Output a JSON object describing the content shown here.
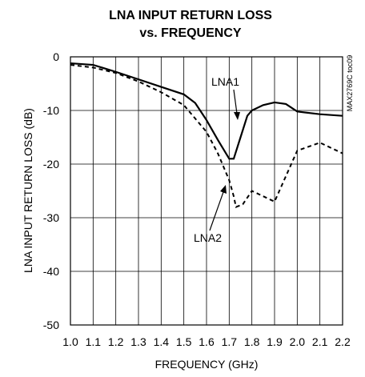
{
  "chart_data": {
    "type": "line",
    "title": "LNA INPUT RETURN LOSS",
    "subtitle": "vs. FREQUENCY",
    "x_label": "FREQUENCY (GHz)",
    "y_label": "LNA INPUT RETURN LOSS (dB)",
    "side_note": "MAX2769C toc09",
    "xlim": [
      1.0,
      2.2
    ],
    "ylim": [
      -50,
      0
    ],
    "xticks": [
      {
        "value": 1.0,
        "label": "1.0"
      },
      1.1,
      1.2,
      1.3,
      1.4,
      1.5,
      1.6,
      1.7,
      1.8,
      1.9,
      {
        "value": 2.0,
        "label": "2.0"
      },
      2.1,
      2.2
    ],
    "yticks": [
      0,
      -10,
      -20,
      -30,
      -40,
      -50
    ],
    "grid": true,
    "series": [
      {
        "name": "LNA1",
        "color": "#000000",
        "dash": "solid",
        "x": [
          1.0,
          1.1,
          1.2,
          1.3,
          1.4,
          1.5,
          1.55,
          1.6,
          1.65,
          1.7,
          1.72,
          1.75,
          1.78,
          1.8,
          1.85,
          1.9,
          1.95,
          2.0,
          2.1,
          2.2
        ],
        "values": [
          -1.2,
          -1.5,
          -2.8,
          -4.2,
          -5.6,
          -7,
          -8.6,
          -11.8,
          -15.5,
          -19,
          -19,
          -15,
          -11,
          -10,
          -9,
          -8.5,
          -8.8,
          -10.2,
          -10.7,
          -11
        ]
      },
      {
        "name": "LNA2",
        "color": "#000000",
        "dash": "dashed",
        "x": [
          1.0,
          1.1,
          1.2,
          1.3,
          1.4,
          1.5,
          1.6,
          1.65,
          1.7,
          1.72,
          1.73,
          1.76,
          1.8,
          1.9,
          2.0,
          2.1,
          2.2
        ],
        "values": [
          -1.5,
          -2,
          -3,
          -4.6,
          -6.6,
          -9,
          -14,
          -18,
          -23,
          -26,
          -28,
          -27.5,
          -25,
          -27,
          -17.5,
          -16,
          -18
        ]
      }
    ]
  }
}
